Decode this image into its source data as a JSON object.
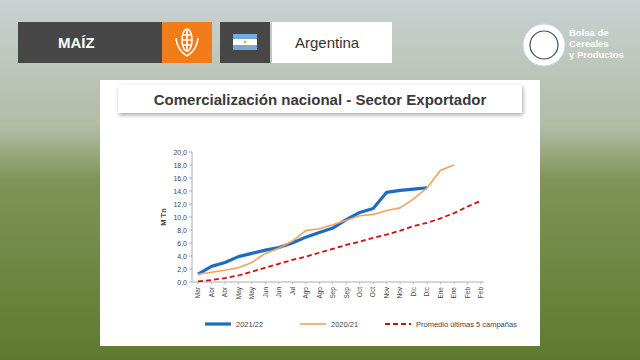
{
  "header": {
    "crop": "MAÍZ",
    "country": "Argentina",
    "logo_text": [
      "Bolsa de",
      "Cereales",
      "y Productos"
    ]
  },
  "chart_data": {
    "type": "line",
    "title": "Comercialización nacional - Sector Exportador",
    "y_label": "M Tn",
    "categories": [
      "Mar",
      "Abr",
      "Abr",
      "May",
      "May",
      "Jun",
      "Jun",
      "Jul",
      "Ago",
      "Ago",
      "Sep",
      "Sep",
      "Oct",
      "Oct",
      "Nov",
      "Nov",
      "Dic",
      "Dic",
      "Ene",
      "Ene",
      "Feb",
      "Feb"
    ],
    "series": [
      {
        "name": "2021/22",
        "color": "#1f6cbf",
        "line_style": "solid",
        "values": [
          1.2,
          2.4,
          3.0,
          3.9,
          4.4,
          4.9,
          5.3,
          6.0,
          6.9,
          7.6,
          8.3,
          9.6,
          10.7,
          11.3,
          13.8,
          14.1,
          14.3,
          14.5,
          null,
          null,
          null,
          null
        ]
      },
      {
        "name": "2020/21",
        "color": "#f2a15f",
        "line_style": "solid",
        "values": [
          1.2,
          1.5,
          1.8,
          2.2,
          3.0,
          4.4,
          5.2,
          6.3,
          7.9,
          8.2,
          8.8,
          9.5,
          10.2,
          10.4,
          11.0,
          11.4,
          12.8,
          14.5,
          17.2,
          18.0,
          null,
          null
        ]
      },
      {
        "name": "Promedio últimas 5 campañas",
        "color": "#d01010",
        "line_style": "dashed",
        "values": [
          0.1,
          0.3,
          0.6,
          1.0,
          1.6,
          2.2,
          2.8,
          3.4,
          3.9,
          4.5,
          5.1,
          5.7,
          6.2,
          6.8,
          7.3,
          7.9,
          8.6,
          9.1,
          9.8,
          10.6,
          11.6,
          12.5
        ]
      }
    ],
    "ylim": [
      0,
      20
    ],
    "yticks": [
      {
        "value": 0,
        "label": "0,0"
      },
      {
        "value": 2,
        "label": "2,0"
      },
      {
        "value": 4,
        "label": "4,0"
      },
      {
        "value": 6,
        "label": "6,0"
      },
      {
        "value": 8,
        "label": "8,0"
      },
      {
        "value": 10,
        "label": "10,0"
      },
      {
        "value": 12,
        "label": "12,0"
      },
      {
        "value": 14,
        "label": "14,0"
      },
      {
        "value": 16,
        "label": "16,0"
      },
      {
        "value": 18,
        "label": "18,0"
      },
      {
        "value": 20,
        "label": "20,0"
      }
    ],
    "grid": false,
    "legend": "bottom"
  }
}
